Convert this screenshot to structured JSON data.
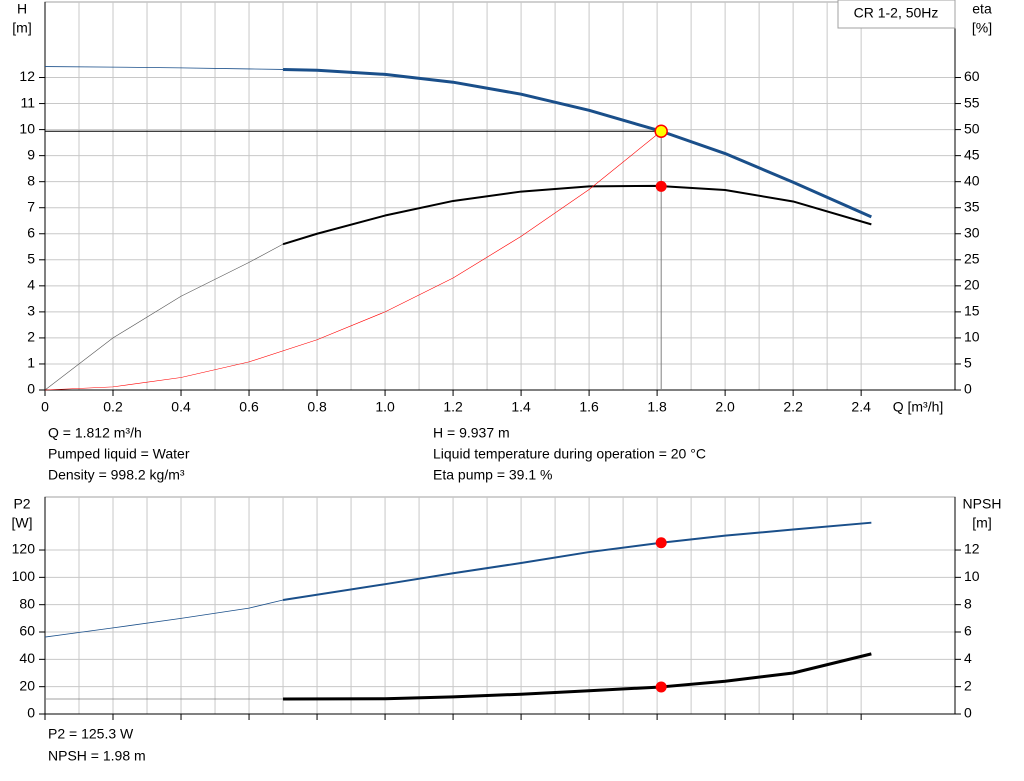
{
  "chart_data": [
    {
      "type": "line",
      "title": "CR 1-2, 50Hz",
      "xlabel": "Q [m³/h]",
      "ylabel": [
        "H",
        "[m]"
      ],
      "y2label": [
        "eta",
        "[%]"
      ],
      "xlim": [
        0,
        2.676
      ],
      "ylim": [
        0,
        14.9
      ],
      "y2lim": [
        0,
        74.5
      ],
      "xticks": [
        0,
        0.2,
        0.4,
        0.6,
        0.8,
        {
          "value": 1,
          "label": "1.0"
        },
        1.2,
        1.4,
        1.6,
        1.8,
        {
          "value": 2,
          "label": "2.0"
        },
        2.2,
        2.4
      ],
      "yticks": [
        0,
        1,
        2,
        3,
        4,
        5,
        6,
        7,
        8,
        9,
        10,
        11,
        12
      ],
      "y2ticks": [
        0,
        5,
        10,
        15,
        20,
        25,
        30,
        35,
        40,
        45,
        50,
        55,
        60
      ],
      "grid": true,
      "series": [
        {
          "color": "#1a4f8a",
          "width": 0.8,
          "axis": "y",
          "x": [
            0,
            0.2,
            0.4,
            0.6,
            0.7
          ],
          "values": [
            12.42,
            12.4,
            12.37,
            12.33,
            12.31
          ]
        },
        {
          "color": "#1a4f8a",
          "width": 3,
          "axis": "y",
          "x": [
            0.7,
            0.8,
            1.0,
            1.2,
            1.4,
            1.6,
            1.812,
            2.0,
            2.2,
            2.43
          ],
          "values": [
            12.31,
            12.28,
            12.12,
            11.82,
            11.36,
            10.74,
            9.937,
            9.08,
            7.98,
            6.65
          ]
        },
        {
          "color": "#555555",
          "width": 0.6,
          "axis": "y2",
          "x": [
            0,
            0.2,
            0.4,
            0.6,
            0.7
          ],
          "values": [
            0,
            10,
            18,
            24.5,
            28
          ]
        },
        {
          "color": "#000000",
          "width": 2,
          "axis": "y2",
          "x": [
            0.7,
            0.8,
            1.0,
            1.2,
            1.4,
            1.6,
            1.8,
            2.0,
            2.2,
            2.43
          ],
          "values": [
            28,
            30,
            33.5,
            36.3,
            38.1,
            39.1,
            39.2,
            38.4,
            36.2,
            31.8
          ]
        },
        {
          "color": "#ff0000",
          "width": 0.6,
          "axis": "y",
          "x": [
            0,
            0.2,
            0.4,
            0.6,
            0.8,
            1.0,
            1.2,
            1.4,
            1.6,
            1.812
          ],
          "values": [
            0,
            0.12,
            0.48,
            1.08,
            1.93,
            3.0,
            4.3,
            5.9,
            7.7,
            9.937
          ]
        }
      ],
      "points": [
        {
          "x": 1.812,
          "value": 9.937,
          "axis": "y",
          "color": "#ffff00",
          "stroke": "#ff0000",
          "guides": true
        },
        {
          "x": 1.812,
          "value": 39.1,
          "axis": "y2",
          "color": "#ff0000"
        }
      ]
    },
    {
      "type": "line",
      "ylabel": [
        "P2",
        "[W]"
      ],
      "y2label": [
        "NPSH",
        "[m]"
      ],
      "xlim": [
        0,
        2.676
      ],
      "ylim": [
        0,
        158.8
      ],
      "y2lim": [
        0,
        15.88
      ],
      "xticks": [
        0,
        0.2,
        0.4,
        0.6,
        0.8,
        1,
        1.2,
        1.4,
        1.6,
        1.8,
        2,
        2.2,
        2.4
      ],
      "yticks": [
        0,
        20,
        40,
        60,
        80,
        100,
        120
      ],
      "y2ticks": [
        0,
        2,
        4,
        6,
        8,
        10,
        12
      ],
      "grid": true,
      "series": [
        {
          "color": "#1a4f8a",
          "width": 0.8,
          "axis": "y",
          "x": [
            0,
            0.2,
            0.4,
            0.6,
            0.7
          ],
          "values": [
            56.3,
            63,
            70,
            77.5,
            83.4
          ]
        },
        {
          "color": "#1a4f8a",
          "width": 2,
          "axis": "y",
          "x": [
            0.7,
            1.0,
            1.2,
            1.4,
            1.6,
            1.812,
            2.0,
            2.2,
            2.43
          ],
          "values": [
            83.4,
            95,
            103,
            110.5,
            118.5,
            125.3,
            130.5,
            135,
            140
          ]
        },
        {
          "color": "#808080",
          "width": 0.8,
          "axis": "y2",
          "x": [
            0,
            0.7
          ],
          "values": [
            1.1,
            1.1
          ]
        },
        {
          "color": "#000000",
          "width": 3,
          "axis": "y2",
          "x": [
            0.7,
            1.0,
            1.2,
            1.4,
            1.6,
            1.812,
            2.0,
            2.2,
            2.43
          ],
          "values": [
            1.1,
            1.12,
            1.25,
            1.45,
            1.7,
            1.98,
            2.4,
            3.0,
            4.4
          ]
        }
      ],
      "points": [
        {
          "x": 1.812,
          "value": 125.3,
          "axis": "y",
          "color": "#ff0000"
        },
        {
          "x": 1.812,
          "value": 1.98,
          "axis": "y2",
          "color": "#ff0000"
        }
      ]
    }
  ],
  "info": [
    "Q = 1.812 m³/h",
    "Pumped liquid = Water",
    "Density = 998.2 kg/m³",
    "H = 9.937 m",
    "Liquid temperature during operation = 20 °C",
    "Eta pump = 39.1 %",
    "P2 = 125.3 W",
    "NPSH = 1.98 m"
  ]
}
